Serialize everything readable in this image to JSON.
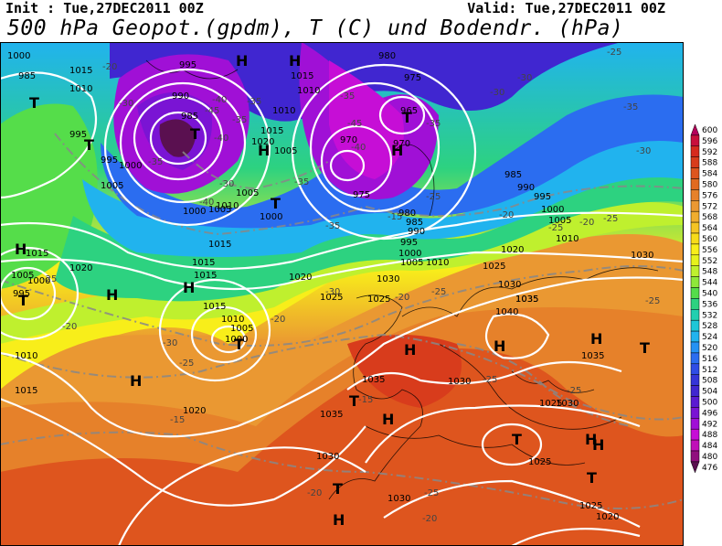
{
  "header": {
    "init": "Init : Tue,27DEC2011 00Z",
    "valid": "Valid: Tue,27DEC2011 00Z",
    "title": "500 hPa Geopot.(gpdm), T (C) und Bodendr. (hPa)"
  },
  "colors": {
    "scale_levels": [
      {
        "value": "600",
        "color": "#b5005a"
      },
      {
        "value": "596",
        "color": "#c80f3c"
      },
      {
        "value": "592",
        "color": "#d62a1e"
      },
      {
        "value": "588",
        "color": "#d83c1c"
      },
      {
        "value": "584",
        "color": "#de551e"
      },
      {
        "value": "580",
        "color": "#e16a20"
      },
      {
        "value": "576",
        "color": "#e6812a"
      },
      {
        "value": "572",
        "color": "#ea9832"
      },
      {
        "value": "568",
        "color": "#f0ad2e"
      },
      {
        "value": "564",
        "color": "#f4c423"
      },
      {
        "value": "560",
        "color": "#f7db1a"
      },
      {
        "value": "556",
        "color": "#f8ee1a"
      },
      {
        "value": "552",
        "color": "#e6f21c"
      },
      {
        "value": "548",
        "color": "#bff02e"
      },
      {
        "value": "544",
        "color": "#8ee83a"
      },
      {
        "value": "540",
        "color": "#55dd4a"
      },
      {
        "value": "536",
        "color": "#2dd280"
      },
      {
        "value": "532",
        "color": "#21cfb0"
      },
      {
        "value": "528",
        "color": "#1ec7d8"
      },
      {
        "value": "524",
        "color": "#21b3ee"
      },
      {
        "value": "520",
        "color": "#2592f4"
      },
      {
        "value": "516",
        "color": "#2b6df0"
      },
      {
        "value": "512",
        "color": "#2f4de6"
      },
      {
        "value": "508",
        "color": "#3535d8"
      },
      {
        "value": "504",
        "color": "#4026d0"
      },
      {
        "value": "500",
        "color": "#5a1ad2"
      },
      {
        "value": "496",
        "color": "#7a14d4"
      },
      {
        "value": "492",
        "color": "#a010d6"
      },
      {
        "value": "488",
        "color": "#c60ed6"
      },
      {
        "value": "484",
        "color": "#c010b8"
      },
      {
        "value": "480",
        "color": "#90107e"
      },
      {
        "value": "476",
        "color": "#5a1050"
      }
    ]
  },
  "pressure_labels": [
    "1000",
    "985",
    "1010",
    "1015",
    "995",
    "1000",
    "1005",
    "990",
    "995",
    "1000",
    "985",
    "1005",
    "1015",
    "1020",
    "1005",
    "1010",
    "1015",
    "1010",
    "980",
    "975",
    "965",
    "970",
    "970",
    "975",
    "985",
    "990",
    "995",
    "1000",
    "1005",
    "980",
    "985",
    "990",
    "995",
    "1000",
    "1005",
    "1010",
    "1015",
    "1010",
    "1005",
    "1000",
    "995",
    "1015",
    "1010",
    "1015",
    "1020",
    "1015",
    "1020",
    "1025",
    "1015",
    "1010",
    "1005",
    "1000",
    "1020",
    "1025",
    "1030",
    "1035",
    "1040",
    "1030",
    "1035",
    "1035",
    "1030",
    "1025",
    "1030",
    "1030",
    "1025",
    "1025",
    "1015",
    "1010",
    "1020",
    "995",
    "1000",
    "1005",
    "1020",
    "1025",
    "1030",
    "1035",
    "1035",
    "1030"
  ],
  "temperature_labels": [
    "-20",
    "-30",
    "-35",
    "-40",
    "-45",
    "-40",
    "-35",
    "-35",
    "-30",
    "-35",
    "-45",
    "-40",
    "-35",
    "-40",
    "-35",
    "-30",
    "-25",
    "-30",
    "-35",
    "-25",
    "-20",
    "-25",
    "-30",
    "-30",
    "-25",
    "-20",
    "-20",
    "-25",
    "-15",
    "-15",
    "-20",
    "-25",
    "-25",
    "-25",
    "-20",
    "-25",
    "-20",
    "-20",
    "-15",
    "-25",
    "-30",
    "-25",
    "-35"
  ],
  "highs": [
    "H",
    "H",
    "H",
    "H",
    "H",
    "H",
    "H",
    "H",
    "H",
    "H",
    "H",
    "H",
    "H",
    "H",
    "H"
  ],
  "lows": [
    "T",
    "T",
    "T",
    "T",
    "T",
    "T",
    "T",
    "T",
    "T",
    "T",
    "T",
    "T"
  ]
}
